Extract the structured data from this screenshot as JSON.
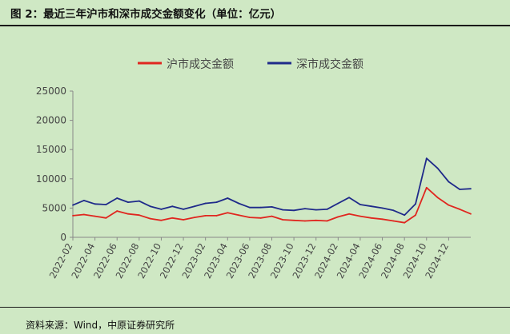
{
  "figure": {
    "title": "图 2：最近三年沪市和深市成交金额变化（单位：亿元）",
    "source": "资料来源：Wind，中原证券研究所"
  },
  "colors": {
    "background": "#cfe8c4",
    "sh_series": "#e0261f",
    "sz_series": "#1f2a8a",
    "axis": "#888888",
    "tick_text": "#444444"
  },
  "chart_data": {
    "type": "line",
    "title": "",
    "xlabel": "",
    "ylabel": "",
    "ylim": [
      0,
      25000
    ],
    "yticks": [
      0,
      5000,
      10000,
      15000,
      20000,
      25000
    ],
    "xticks": [
      "2022-02",
      "2022-04",
      "2022-06",
      "2022-08",
      "2022-10",
      "2022-12",
      "2023-02",
      "2023-04",
      "2023-06",
      "2023-08",
      "2023-10",
      "2023-12",
      "2024-02",
      "2024-04",
      "2024-06",
      "2024-08",
      "2024-10",
      "2024-12"
    ],
    "x": [
      "2022-02",
      "2022-03",
      "2022-04",
      "2022-05",
      "2022-06",
      "2022-07",
      "2022-08",
      "2022-09",
      "2022-10",
      "2022-11",
      "2022-12",
      "2023-01",
      "2023-02",
      "2023-03",
      "2023-04",
      "2023-05",
      "2023-06",
      "2023-07",
      "2023-08",
      "2023-09",
      "2023-10",
      "2023-11",
      "2023-12",
      "2024-01",
      "2024-02",
      "2024-03",
      "2024-04",
      "2024-05",
      "2024-06",
      "2024-07",
      "2024-08",
      "2024-09",
      "2024-10",
      "2024-11",
      "2024-12",
      "2025-01",
      "2025-02"
    ],
    "legend_position": "top-center",
    "grid": false,
    "series": [
      {
        "name": "沪市成交金额",
        "values": [
          3700,
          3900,
          3600,
          3300,
          4500,
          4000,
          3800,
          3200,
          2900,
          3300,
          3000,
          3400,
          3700,
          3700,
          4200,
          3800,
          3400,
          3300,
          3600,
          3000,
          2900,
          2800,
          2900,
          2800,
          3500,
          4000,
          3600,
          3300,
          3100,
          2800,
          2500,
          3800,
          8500,
          6800,
          5500,
          4800,
          4000
        ]
      },
      {
        "name": "深市成交金额",
        "values": [
          5500,
          6300,
          5700,
          5600,
          6700,
          6000,
          6200,
          5300,
          4800,
          5300,
          4800,
          5300,
          5800,
          6000,
          6700,
          5800,
          5100,
          5100,
          5200,
          4700,
          4600,
          4900,
          4700,
          4800,
          5800,
          6800,
          5600,
          5300,
          5000,
          4600,
          3800,
          5700,
          13500,
          11800,
          9500,
          8200,
          8300
        ]
      }
    ]
  }
}
